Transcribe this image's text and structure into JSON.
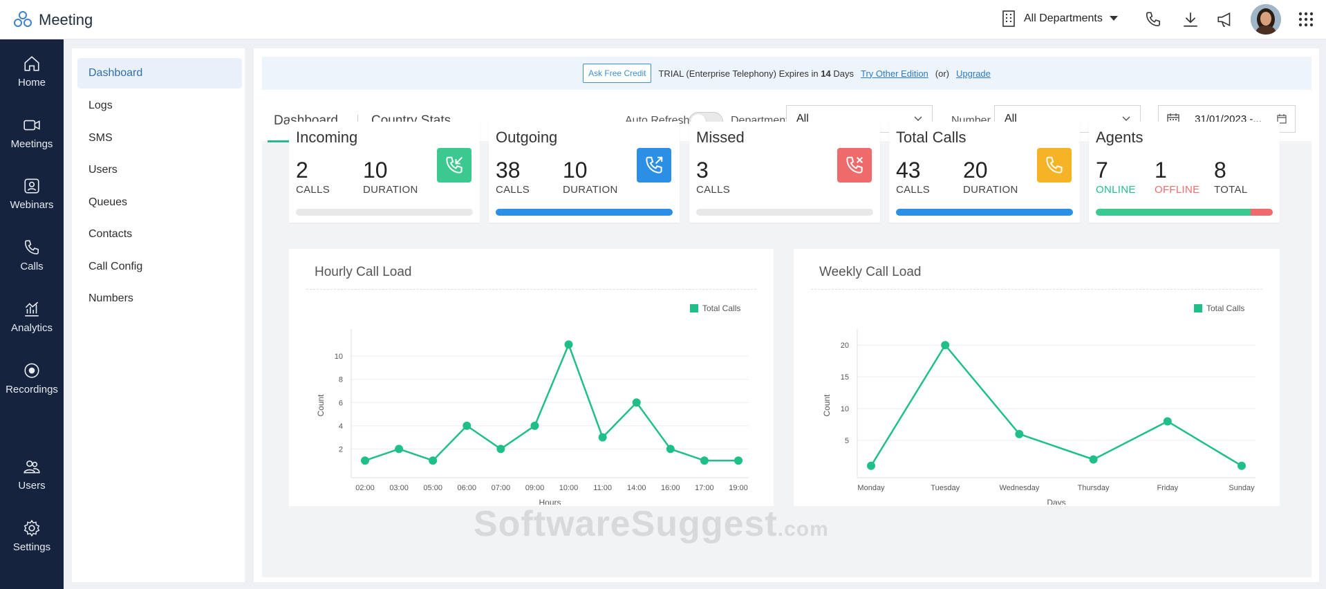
{
  "app": {
    "title": "Meeting"
  },
  "header": {
    "department_selector": "All Departments",
    "icons": [
      "phone-icon",
      "download-icon",
      "megaphone-icon",
      "apps-grid-icon"
    ]
  },
  "rail": {
    "items": [
      {
        "label": "Home",
        "icon": "home-icon"
      },
      {
        "label": "Meetings",
        "icon": "video-camera-icon"
      },
      {
        "label": "Webinars",
        "icon": "webinar-icon"
      },
      {
        "label": "Calls",
        "icon": "phone-icon"
      },
      {
        "label": "Analytics",
        "icon": "analytics-icon"
      },
      {
        "label": "Recordings",
        "icon": "record-icon"
      },
      {
        "label": "Users",
        "icon": "users-icon"
      },
      {
        "label": "Settings",
        "icon": "gear-icon"
      }
    ]
  },
  "sidebar": {
    "items": [
      {
        "label": "Dashboard",
        "active": true
      },
      {
        "label": "Logs"
      },
      {
        "label": "SMS"
      },
      {
        "label": "Users"
      },
      {
        "label": "Queues"
      },
      {
        "label": "Contacts"
      },
      {
        "label": "Call Config"
      },
      {
        "label": "Numbers"
      }
    ]
  },
  "trial_banner": {
    "button": "Ask Free Credit",
    "text_prefix": "TRIAL (Enterprise Telephony) Expires in",
    "days": "14",
    "text_suffix": "Days",
    "link_other": "Try Other Edition",
    "or": "(or)",
    "link_upgrade": "Upgrade"
  },
  "tabs": [
    "Dashboard",
    "Country Stats"
  ],
  "filters": {
    "auto_refresh_label": "Auto Refresh",
    "auto_refresh_on": false,
    "department_label": "Department",
    "department_value": "All",
    "number_label": "Number",
    "number_value": "All",
    "date_value": "31/01/2023 -..."
  },
  "stats": {
    "incoming": {
      "title": "Incoming",
      "calls": "2",
      "calls_label": "CALLS",
      "duration": "10",
      "duration_label": "DURATION"
    },
    "outgoing": {
      "title": "Outgoing",
      "calls": "38",
      "calls_label": "CALLS",
      "duration": "10",
      "duration_label": "DURATION"
    },
    "missed": {
      "title": "Missed",
      "calls": "3",
      "calls_label": "CALLS"
    },
    "total": {
      "title": "Total Calls",
      "calls": "43",
      "calls_label": "CALLS",
      "duration": "20",
      "duration_label": "DURATION"
    },
    "agents": {
      "title": "Agents",
      "online": "7",
      "online_label": "ONLINE",
      "offline": "1",
      "offline_label": "OFFLINE",
      "total": "8",
      "total_label": "TOTAL"
    }
  },
  "colors": {
    "accent_green": "#1fbf87",
    "incoming_badge": "#3cc98f",
    "outgoing_badge": "#2b8fe5",
    "missed_badge": "#ef6a6a",
    "total_badge": "#f5b325",
    "offline_red": "#ef6a6a",
    "rail_bg": "#15233f"
  },
  "progress": {
    "incoming": 0,
    "outgoing": 1,
    "missed": 0,
    "total": 1,
    "agents_online": 0.875,
    "agents_offline": 0.125
  },
  "chart_data": [
    {
      "type": "line",
      "title": "Hourly Call Load",
      "xlabel": "Hours",
      "ylabel": "Count",
      "categories": [
        "02:00",
        "03:00",
        "05:00",
        "06:00",
        "07:00",
        "09:00",
        "10:00",
        "11:00",
        "14:00",
        "16:00",
        "17:00",
        "19:00"
      ],
      "series": [
        {
          "name": "Total Calls",
          "values": [
            1,
            2,
            1,
            4,
            2,
            4,
            11,
            3,
            6,
            2,
            1,
            1
          ]
        }
      ],
      "yticks": [
        2,
        4,
        6,
        8,
        10
      ],
      "ylim": [
        0,
        11.5
      ],
      "legend": "top-right",
      "grid": true
    },
    {
      "type": "line",
      "title": "Weekly Call Load",
      "xlabel": "Days",
      "ylabel": "Count",
      "categories": [
        "Monday",
        "Tuesday",
        "Wednesday",
        "Thursday",
        "Friday",
        "Sunday"
      ],
      "series": [
        {
          "name": "Total Calls",
          "values": [
            1,
            20,
            6,
            2,
            8,
            1
          ]
        }
      ],
      "yticks": [
        5,
        10,
        15,
        20
      ],
      "ylim": [
        0,
        21
      ],
      "legend": "top-right",
      "grid": true
    }
  ],
  "watermark": {
    "main": "SoftwareSuggest",
    "suffix": ".com"
  }
}
